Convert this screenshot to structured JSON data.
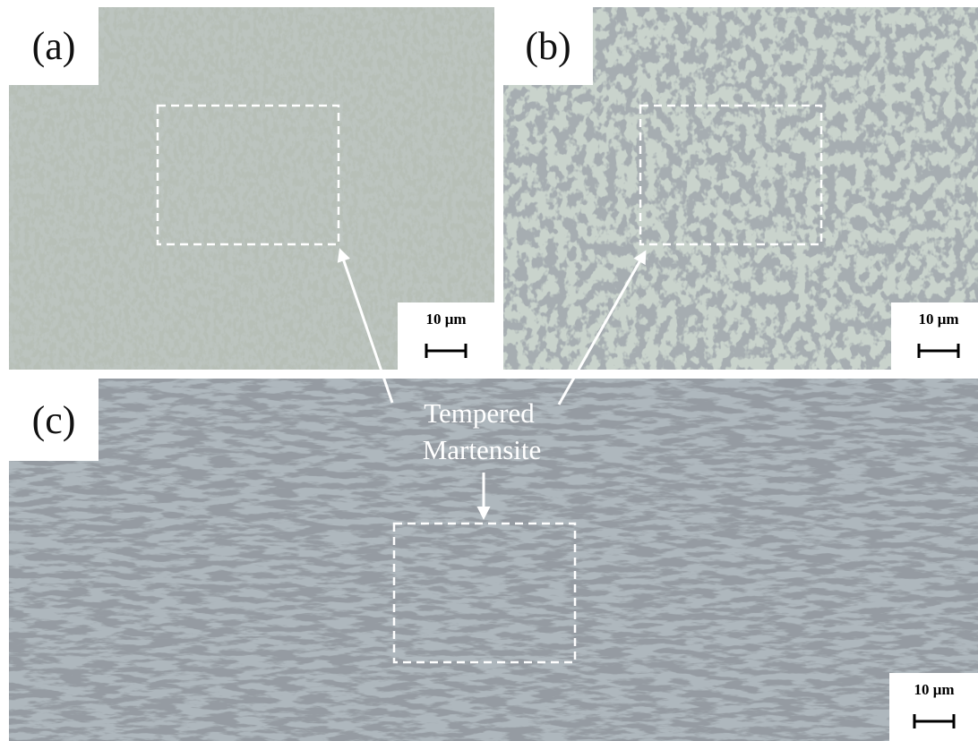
{
  "panels": [
    {
      "label": "(a)",
      "scale": "10 μm"
    },
    {
      "label": "(b)",
      "scale": "10 μm"
    },
    {
      "label": "(c)",
      "scale": "10 μm"
    }
  ],
  "annotation": {
    "lines": [
      "Tempered",
      "Martensite"
    ]
  }
}
